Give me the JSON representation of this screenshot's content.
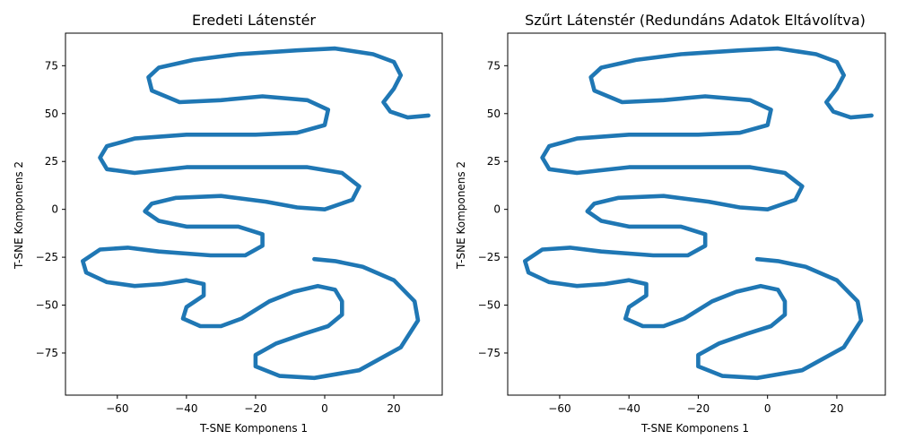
{
  "chart_data": [
    {
      "type": "scatter",
      "title": "Eredeti Látenstér",
      "xlabel": "T-SNE Komponens 1",
      "ylabel": "T-SNE Komponens 2",
      "xlim": [
        -75,
        34
      ],
      "ylim": [
        -97,
        92
      ],
      "xticks": [
        -60,
        -40,
        -20,
        0,
        20
      ],
      "xtick_labels": [
        "−60",
        "−40",
        "−20",
        "0",
        "20"
      ],
      "yticks": [
        75,
        50,
        25,
        0,
        -25,
        -50,
        -75
      ],
      "ytick_labels": [
        "75",
        "50",
        "25",
        "0",
        "−25",
        "−50",
        "−75"
      ],
      "grid": false,
      "series": [
        {
          "color": "#1f77b4",
          "points": [
            [
              30,
              49
            ],
            [
              24,
              48
            ],
            [
              19,
              51
            ],
            [
              17,
              56
            ],
            [
              20,
              63
            ],
            [
              22,
              70
            ],
            [
              20,
              77
            ],
            [
              14,
              81
            ],
            [
              3,
              84
            ],
            [
              -8,
              83
            ],
            [
              -25,
              81
            ],
            [
              -38,
              78
            ],
            [
              -48,
              74
            ],
            [
              -51,
              69
            ],
            [
              -50,
              62
            ],
            [
              -42,
              56
            ],
            [
              -30,
              57
            ],
            [
              -18,
              59
            ],
            [
              -5,
              57
            ],
            [
              1,
              52
            ],
            [
              0,
              44
            ],
            [
              -8,
              40
            ],
            [
              -20,
              39
            ],
            [
              -40,
              39
            ],
            [
              -55,
              37
            ],
            [
              -63,
              33
            ],
            [
              -65,
              27
            ],
            [
              -63,
              21
            ],
            [
              -55,
              19
            ],
            [
              -40,
              22
            ],
            [
              -20,
              22
            ],
            [
              -5,
              22
            ],
            [
              5,
              19
            ],
            [
              10,
              12
            ],
            [
              8,
              5
            ],
            [
              0,
              0
            ],
            [
              -8,
              1
            ],
            [
              -17,
              4
            ],
            [
              -30,
              7
            ],
            [
              -43,
              6
            ],
            [
              -50,
              3
            ],
            [
              -52,
              -1
            ],
            [
              -48,
              -6
            ],
            [
              -40,
              -9
            ],
            [
              -25,
              -9
            ],
            [
              -18,
              -13
            ],
            [
              -18,
              -19
            ],
            [
              -23,
              -24
            ],
            [
              -33,
              -24
            ],
            [
              -48,
              -22
            ],
            [
              -57,
              -20
            ],
            [
              -65,
              -21
            ],
            [
              -70,
              -27
            ],
            [
              -69,
              -33
            ],
            [
              -63,
              -38
            ],
            [
              -55,
              -40
            ],
            [
              -47,
              -39
            ],
            [
              -40,
              -37
            ],
            [
              -35,
              -39
            ],
            [
              -35,
              -45
            ],
            [
              -40,
              -51
            ],
            [
              -41,
              -57
            ],
            [
              -36,
              -61
            ],
            [
              -30,
              -61
            ],
            [
              -24,
              -57
            ],
            [
              -16,
              -48
            ],
            [
              -9,
              -43
            ],
            [
              -2,
              -40
            ],
            [
              3,
              -42
            ],
            [
              5,
              -48
            ],
            [
              5,
              -55
            ],
            [
              1,
              -61
            ],
            [
              -6,
              -65
            ],
            [
              -14,
              -70
            ],
            [
              -20,
              -76
            ],
            [
              -20,
              -82
            ],
            [
              -13,
              -87
            ],
            [
              -3,
              -88
            ],
            [
              10,
              -84
            ],
            [
              22,
              -72
            ],
            [
              27,
              -58
            ],
            [
              26,
              -48
            ],
            [
              20,
              -37
            ],
            [
              11,
              -30
            ],
            [
              3,
              -27
            ],
            [
              -3,
              -26
            ]
          ]
        }
      ]
    },
    {
      "type": "scatter",
      "title": "Szűrt Látenstér (Redundáns Adatok Eltávolítva)",
      "xlabel": "T-SNE Komponens 1",
      "ylabel": "T-SNE Komponens 2",
      "xlim": [
        -75,
        34
      ],
      "ylim": [
        -97,
        92
      ],
      "xticks": [
        -60,
        -40,
        -20,
        0,
        20
      ],
      "xtick_labels": [
        "−60",
        "−40",
        "−20",
        "0",
        "20"
      ],
      "yticks": [
        75,
        50,
        25,
        0,
        -25,
        -50,
        -75
      ],
      "ytick_labels": [
        "75",
        "50",
        "25",
        "0",
        "−25",
        "−50",
        "−75"
      ],
      "grid": false,
      "series": [
        {
          "color": "#1f77b4",
          "points": [
            [
              30,
              49
            ],
            [
              24,
              48
            ],
            [
              19,
              51
            ],
            [
              17,
              56
            ],
            [
              20,
              63
            ],
            [
              22,
              70
            ],
            [
              20,
              77
            ],
            [
              14,
              81
            ],
            [
              3,
              84
            ],
            [
              -8,
              83
            ],
            [
              -25,
              81
            ],
            [
              -38,
              78
            ],
            [
              -48,
              74
            ],
            [
              -51,
              69
            ],
            [
              -50,
              62
            ],
            [
              -42,
              56
            ],
            [
              -30,
              57
            ],
            [
              -18,
              59
            ],
            [
              -5,
              57
            ],
            [
              1,
              52
            ],
            [
              0,
              44
            ],
            [
              -8,
              40
            ],
            [
              -20,
              39
            ],
            [
              -40,
              39
            ],
            [
              -55,
              37
            ],
            [
              -63,
              33
            ],
            [
              -65,
              27
            ],
            [
              -63,
              21
            ],
            [
              -55,
              19
            ],
            [
              -40,
              22
            ],
            [
              -20,
              22
            ],
            [
              -5,
              22
            ],
            [
              5,
              19
            ],
            [
              10,
              12
            ],
            [
              8,
              5
            ],
            [
              0,
              0
            ],
            [
              -8,
              1
            ],
            [
              -17,
              4
            ],
            [
              -30,
              7
            ],
            [
              -43,
              6
            ],
            [
              -50,
              3
            ],
            [
              -52,
              -1
            ],
            [
              -48,
              -6
            ],
            [
              -40,
              -9
            ],
            [
              -25,
              -9
            ],
            [
              -18,
              -13
            ],
            [
              -18,
              -19
            ],
            [
              -23,
              -24
            ],
            [
              -33,
              -24
            ],
            [
              -48,
              -22
            ],
            [
              -57,
              -20
            ],
            [
              -65,
              -21
            ],
            [
              -70,
              -27
            ],
            [
              -69,
              -33
            ],
            [
              -63,
              -38
            ],
            [
              -55,
              -40
            ],
            [
              -47,
              -39
            ],
            [
              -40,
              -37
            ],
            [
              -35,
              -39
            ],
            [
              -35,
              -45
            ],
            [
              -40,
              -51
            ],
            [
              -41,
              -57
            ],
            [
              -36,
              -61
            ],
            [
              -30,
              -61
            ],
            [
              -24,
              -57
            ],
            [
              -16,
              -48
            ],
            [
              -9,
              -43
            ],
            [
              -2,
              -40
            ],
            [
              3,
              -42
            ],
            [
              5,
              -48
            ],
            [
              5,
              -55
            ],
            [
              1,
              -61
            ],
            [
              -6,
              -65
            ],
            [
              -14,
              -70
            ],
            [
              -20,
              -76
            ],
            [
              -20,
              -82
            ],
            [
              -13,
              -87
            ],
            [
              -3,
              -88
            ],
            [
              10,
              -84
            ],
            [
              22,
              -72
            ],
            [
              27,
              -58
            ],
            [
              26,
              -48
            ],
            [
              20,
              -37
            ],
            [
              11,
              -30
            ],
            [
              3,
              -27
            ],
            [
              -3,
              -26
            ]
          ]
        }
      ]
    }
  ]
}
